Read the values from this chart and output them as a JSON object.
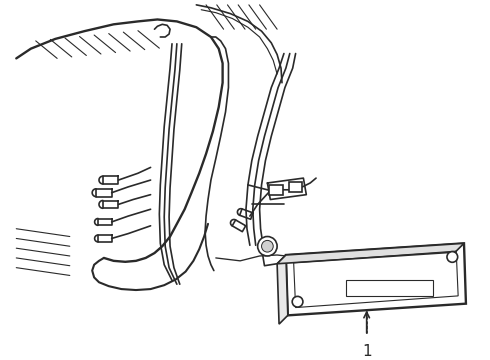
{
  "bg_color": "#ffffff",
  "line_color": "#2a2a2a",
  "line_width": 1.2,
  "fig_width": 4.9,
  "fig_height": 3.6,
  "dpi": 100,
  "label_number": "1",
  "label_fontsize": 10
}
